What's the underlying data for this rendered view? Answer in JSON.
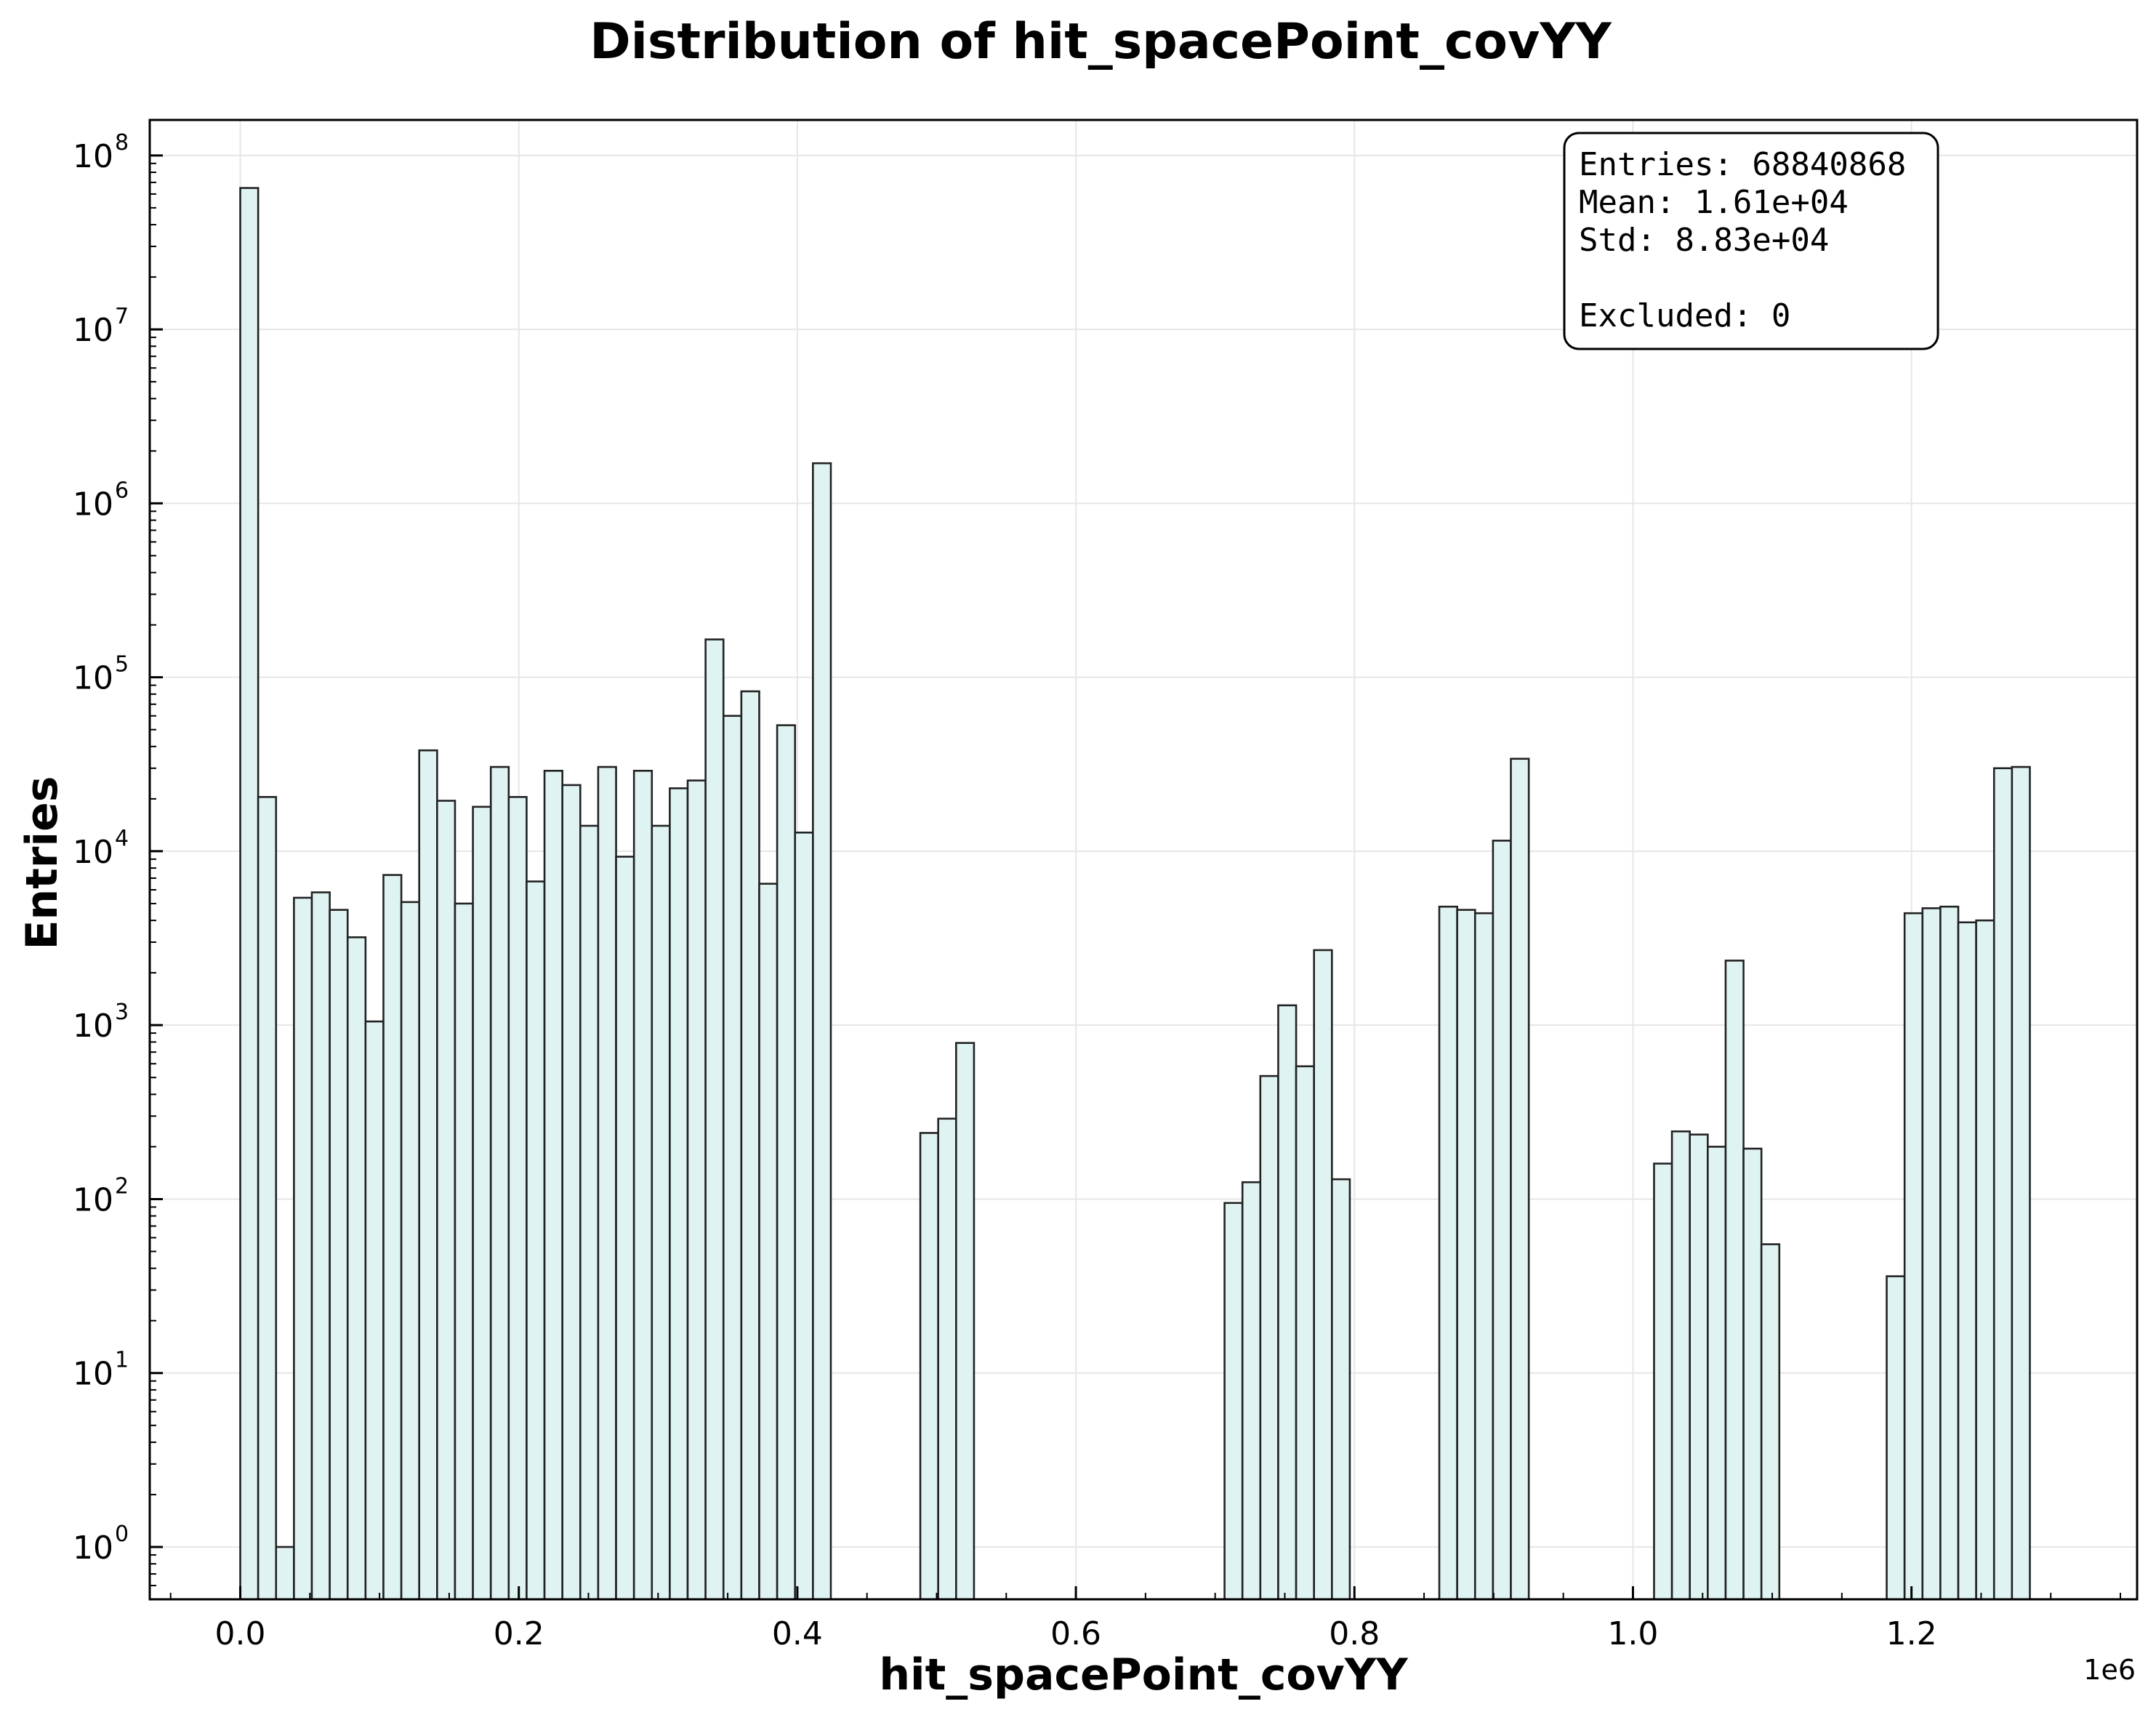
{
  "chart_data": {
    "type": "bar",
    "title": "Distribution of hit_spacePoint_covYY",
    "xlabel": "hit_spacePoint_covYY",
    "ylabel": "Entries",
    "x_offset_label": "1e6",
    "x_scale_factor": 1000000,
    "yscale": "log",
    "xlim": [
      -65000,
      1362000
    ],
    "ylim": [
      0.5,
      160000000
    ],
    "grid": true,
    "bin_start": 0,
    "bin_width": 12850,
    "x_ticks": [
      "0.0",
      "0.2",
      "0.4",
      "0.6",
      "0.8",
      "1.0",
      "1.2"
    ],
    "y_ticks": [
      {
        "base": "10",
        "exp": "0",
        "value": 1
      },
      {
        "base": "10",
        "exp": "1",
        "value": 10
      },
      {
        "base": "10",
        "exp": "2",
        "value": 100
      },
      {
        "base": "10",
        "exp": "3",
        "value": 1000
      },
      {
        "base": "10",
        "exp": "4",
        "value": 10000
      },
      {
        "base": "10",
        "exp": "5",
        "value": 100000
      },
      {
        "base": "10",
        "exp": "6",
        "value": 1000000
      },
      {
        "base": "10",
        "exp": "7",
        "value": 10000000
      },
      {
        "base": "10",
        "exp": "8",
        "value": 100000000
      }
    ],
    "counts": [
      65000000,
      20500,
      1,
      5400,
      5800,
      4600,
      3200,
      1050,
      7300,
      5100,
      38000,
      19500,
      5000,
      18000,
      30500,
      20500,
      6700,
      29000,
      24000,
      14000,
      30500,
      9300,
      29000,
      14000,
      23000,
      25500,
      165000,
      60000,
      83000,
      6500,
      53000,
      12800,
      1700000,
      0,
      0,
      0,
      0,
      0,
      240,
      290,
      790,
      0,
      0,
      0,
      0,
      0,
      0,
      0,
      0,
      0,
      0,
      0,
      0,
      0,
      0,
      95,
      125,
      510,
      1300,
      580,
      2700,
      130,
      0,
      0,
      0,
      0,
      0,
      4800,
      4600,
      4400,
      11500,
      34000,
      0,
      0,
      0,
      0,
      0,
      0,
      0,
      160,
      245,
      235,
      200,
      2350,
      195,
      55,
      0,
      0,
      0,
      0,
      0,
      0,
      36,
      4400,
      4700,
      4800,
      3900,
      4000,
      30000,
      30500
    ],
    "legend": {
      "entries_line": "Entries: 68840868",
      "mean_line": "Mean: 1.61e+04",
      "std_line": "Std: 8.83e+04",
      "excluded_line": "Excluded: 0",
      "placement": "top-right"
    },
    "colors": {
      "bar_fill": "#e0f3f3",
      "bar_edge": "#222222"
    }
  }
}
